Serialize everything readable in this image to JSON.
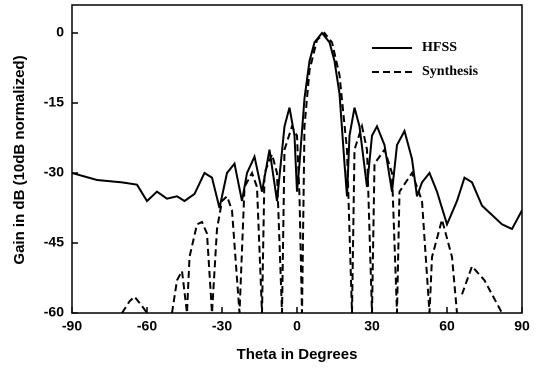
{
  "chart_data": {
    "type": "line",
    "x_label": "Theta in Degrees",
    "y_label": "Gain in dB (10dB normalized)",
    "xlim": [
      -90,
      90
    ],
    "xticks": [
      -90,
      -60,
      -30,
      0,
      30,
      60,
      90
    ],
    "ylim": [
      -60,
      6
    ],
    "yticks": [
      0,
      -15,
      -30,
      -45,
      -60
    ],
    "legend": "top-right",
    "series": [
      {
        "name": "HFSS",
        "color": "#000000",
        "dash": "solid",
        "x": [
          -90,
          -80,
          -70,
          -64,
          -60,
          -56,
          -52,
          -48,
          -45,
          -41,
          -37,
          -34,
          -31,
          -28,
          -25,
          -22,
          -20,
          -17,
          -14,
          -11,
          -8,
          -5,
          -3,
          -1,
          0,
          1,
          3,
          5,
          7,
          10,
          13,
          15,
          17,
          19,
          20,
          21,
          23,
          25,
          28,
          30,
          32,
          35,
          38,
          40,
          43,
          46,
          48,
          50,
          53,
          56,
          60,
          64,
          67,
          70,
          74,
          78,
          82,
          86,
          90
        ],
        "values": [
          -30,
          -31.5,
          -32,
          -32.5,
          -36,
          -34,
          -35.5,
          -35,
          -36,
          -34.5,
          -30,
          -31,
          -37.5,
          -30,
          -28,
          -36,
          -30,
          -26.5,
          -34,
          -25,
          -36,
          -20,
          -16,
          -22,
          -34,
          -28,
          -14,
          -6,
          -2,
          0,
          -2,
          -6,
          -13,
          -28,
          -35,
          -22,
          -16,
          -20,
          -33,
          -22,
          -20,
          -24,
          -34,
          -24,
          -21,
          -27,
          -35,
          -32,
          -30,
          -34,
          -41,
          -36,
          -31,
          -32,
          -37,
          -39,
          -41,
          -42,
          -38
        ]
      },
      {
        "name": "Synthesis",
        "color": "#000000",
        "dash": "dashed",
        "x": [
          -70,
          -67,
          -65,
          -62,
          -60,
          -55,
          -50,
          -48,
          -46,
          -44,
          -43,
          -40,
          -38,
          -36,
          -34,
          -32,
          -30,
          -28,
          -26,
          -23,
          -21,
          -18,
          -16,
          -14,
          -13,
          -10,
          -8,
          -6,
          -5,
          -2,
          0,
          1,
          2,
          3,
          5,
          8,
          11,
          14,
          17,
          20,
          22,
          23,
          26,
          28,
          30,
          31,
          35,
          38,
          40,
          41,
          46,
          50,
          53,
          54,
          58,
          62,
          64,
          65.5,
          66,
          70,
          75,
          80,
          82
        ],
        "values": [
          -60,
          -57.5,
          -56.5,
          -58.5,
          -60,
          null,
          -60,
          -53,
          -51,
          -60,
          -48,
          -41,
          -40.5,
          -43,
          -60,
          -42,
          -36,
          -35,
          -38,
          -60,
          -33,
          -30,
          -33,
          -60,
          -30,
          -26,
          -30,
          -60,
          -25,
          -20,
          -22,
          -35,
          -60,
          -20,
          -8,
          -1.5,
          0,
          -2,
          -9,
          -25,
          -60,
          -25,
          -20,
          -25,
          -60,
          -28,
          -25,
          -30,
          -60,
          -34,
          -30,
          -36,
          -60,
          -48,
          -40,
          -48,
          -60,
          null,
          -56,
          -50,
          -53,
          -58,
          -60
        ]
      }
    ]
  }
}
